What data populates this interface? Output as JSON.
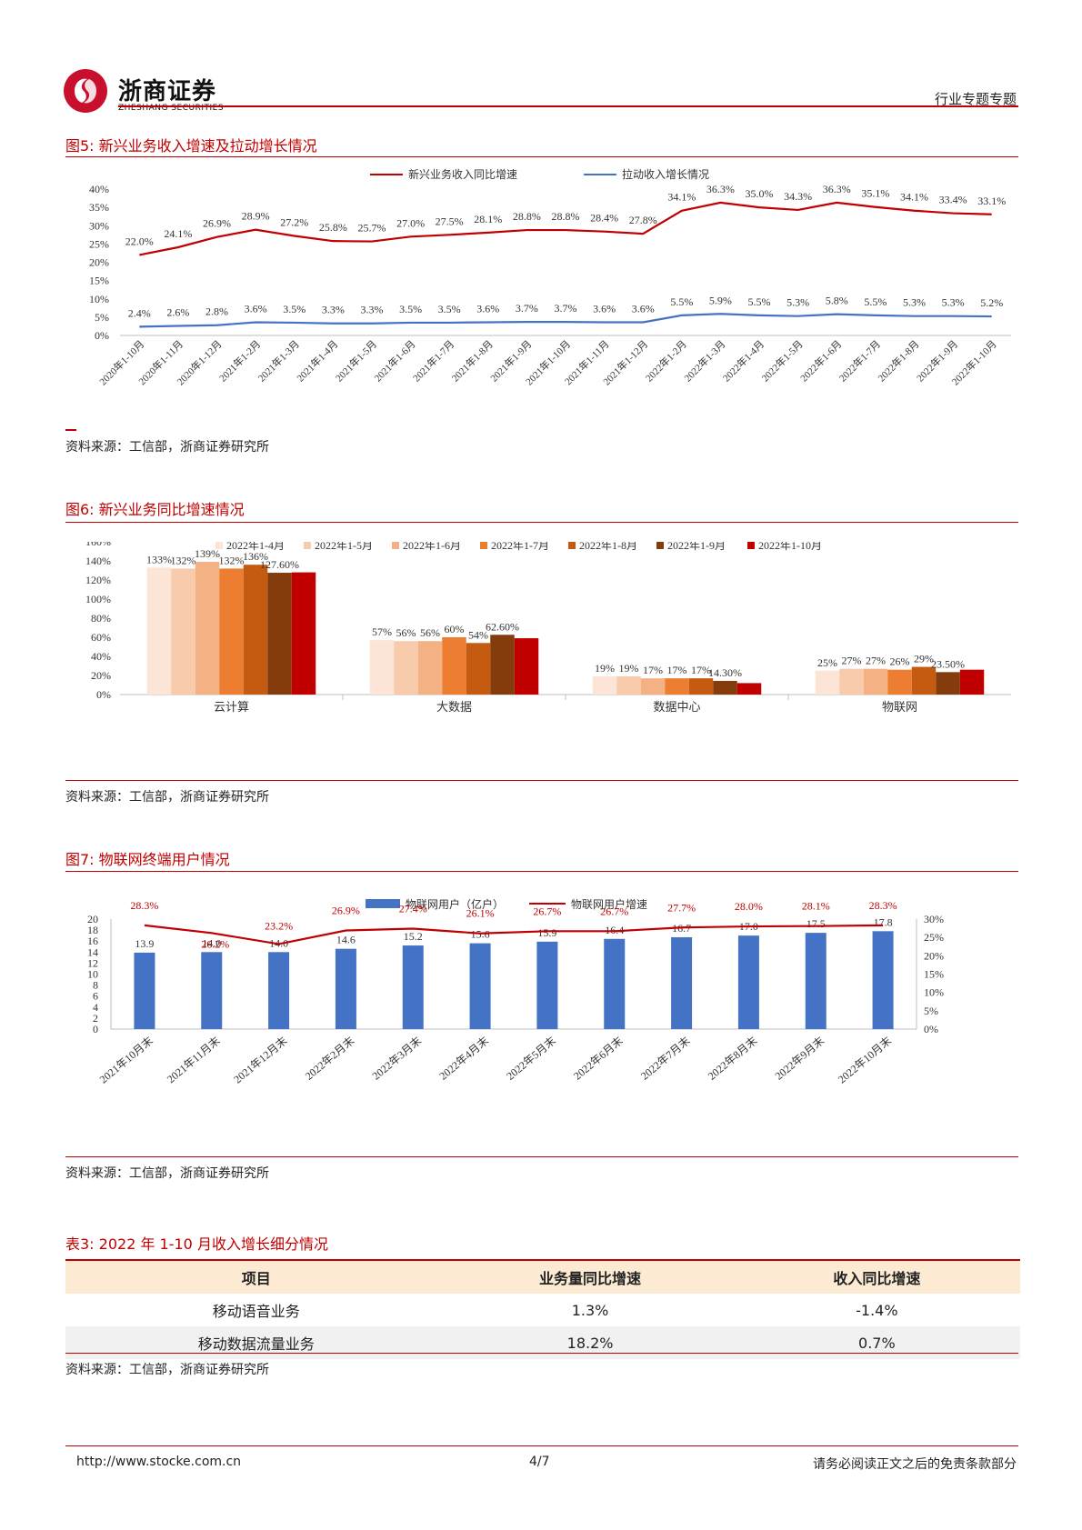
{
  "header": {
    "brand": "浙商证券",
    "brand_en": "ZHESHANG SECURITIES",
    "section": "行业专题专题"
  },
  "fig5": {
    "title": "图5:  新兴业务收入增速及拉动增长情况",
    "source": "资料来源：工信部，浙商证券研究所",
    "chart_data": {
      "type": "line",
      "categories": [
        "2020年1-10月",
        "2020年1-11月",
        "2020年1-12月",
        "2021年1-2月",
        "2021年1-3月",
        "2021年1-4月",
        "2021年1-5月",
        "2021年1-6月",
        "2021年1-7月",
        "2021年1-8月",
        "2021年1-9月",
        "2021年1-10月",
        "2021年1-11月",
        "2021年1-12月",
        "2022年1-2月",
        "2022年1-3月",
        "2022年1-4月",
        "2022年1-5月",
        "2022年1-6月",
        "2022年1-7月",
        "2022年1-8月",
        "2022年1-9月",
        "2022年1-10月"
      ],
      "series": [
        {
          "name": "新兴业务收入同比增速",
          "color": "#c00000",
          "values": [
            22.0,
            24.1,
            26.9,
            28.9,
            27.2,
            25.8,
            25.7,
            27.0,
            27.5,
            28.1,
            28.8,
            28.8,
            28.4,
            27.8,
            34.1,
            36.3,
            35.0,
            34.3,
            36.3,
            35.1,
            34.1,
            33.4,
            33.1
          ],
          "labels": [
            "22.0%",
            "24.1%",
            "26.9%",
            "28.9%",
            "27.2%",
            "25.8%",
            "25.7%",
            "27.0%",
            "27.5%",
            "28.1%",
            "28.8%",
            "28.8%",
            "28.4%",
            "27.8%",
            "34.1%",
            "36.3%",
            "35.0%",
            "34.3%",
            "36.3%",
            "35.1%",
            "34.1%",
            "33.4%",
            "33.1%"
          ]
        },
        {
          "name": "拉动收入增长情况",
          "color": "#4472c4",
          "values": [
            2.4,
            2.6,
            2.8,
            3.6,
            3.5,
            3.3,
            3.3,
            3.5,
            3.5,
            3.6,
            3.7,
            3.7,
            3.6,
            3.6,
            5.5,
            5.9,
            5.5,
            5.3,
            5.8,
            5.5,
            5.3,
            5.3,
            5.2
          ],
          "labels": [
            "2.4%",
            "2.6%",
            "2.8%",
            "3.6%",
            "3.5%",
            "3.3%",
            "3.3%",
            "3.5%",
            "3.5%",
            "3.6%",
            "3.7%",
            "3.7%",
            "3.6%",
            "3.6%",
            "5.5%",
            "5.9%",
            "5.5%",
            "5.3%",
            "5.8%",
            "5.5%",
            "5.3%",
            "5.3%",
            "5.2%"
          ]
        }
      ],
      "yticks": [
        "0%",
        "5%",
        "10%",
        "15%",
        "20%",
        "25%",
        "30%",
        "35%",
        "40%"
      ],
      "ylim": [
        0,
        40
      ],
      "legend": "top"
    }
  },
  "fig6": {
    "title": "图6:  新兴业务同比增速情况",
    "source": "资料来源：工信部，浙商证券研究所",
    "chart_data": {
      "type": "bar",
      "categories": [
        "云计算",
        "大数据",
        "数据中心",
        "物联网"
      ],
      "series": [
        {
          "name": "2022年1-4月",
          "color": "#fce4d6",
          "values": [
            133,
            57,
            19,
            25
          ],
          "labels": [
            "133%",
            "57%",
            "19%",
            "25%"
          ]
        },
        {
          "name": "2022年1-5月",
          "color": "#f8cbad",
          "values": [
            132,
            56,
            19,
            27
          ],
          "labels": [
            "132%",
            "56%",
            "19%",
            "27%"
          ]
        },
        {
          "name": "2022年1-6月",
          "color": "#f4b183",
          "values": [
            139,
            56,
            17,
            27
          ],
          "labels": [
            "139%",
            "56%",
            "17%",
            "27%"
          ]
        },
        {
          "name": "2022年1-7月",
          "color": "#ed7d31",
          "values": [
            132,
            60,
            17,
            26
          ],
          "labels": [
            "132%",
            "60%",
            "17%",
            "26%"
          ]
        },
        {
          "name": "2022年1-8月",
          "color": "#c55a11",
          "values": [
            136,
            54,
            17,
            29
          ],
          "labels": [
            "136%",
            "54%",
            "17%",
            "29%"
          ]
        },
        {
          "name": "2022年1-9月",
          "color": "#843c0c",
          "values": [
            127.6,
            62.6,
            14.3,
            23.5
          ],
          "labels": [
            "127.60%",
            "62.60%",
            "14.30%",
            "23.50%"
          ]
        },
        {
          "name": "2022年1-10月",
          "color": "#c00000",
          "values": [
            128,
            59,
            12,
            26
          ],
          "labels": [
            "",
            "",
            "",
            ""
          ]
        }
      ],
      "yticks": [
        "0%",
        "20%",
        "40%",
        "60%",
        "80%",
        "100%",
        "120%",
        "140%",
        "160%"
      ],
      "ylim": [
        0,
        160
      ],
      "legend": "top"
    }
  },
  "fig7": {
    "title": "图7:  物联网终端用户情况",
    "source": "资料来源：工信部，浙商证券研究所",
    "chart_data": {
      "type": "bar",
      "categories": [
        "2021年10月末",
        "2021年11月末",
        "2021年12月末",
        "2022年2月末",
        "2022年3月末",
        "2022年4月末",
        "2022年5月末",
        "2022年6月末",
        "2022年7月末",
        "2022年8月末",
        "2022年9月末",
        "2022年10月末"
      ],
      "series": [
        {
          "name": "物联网用户（亿户）",
          "type": "bar",
          "color": "#4472c4",
          "values": [
            13.9,
            14.0,
            14.0,
            14.6,
            15.2,
            15.6,
            15.9,
            16.4,
            16.7,
            17.0,
            17.5,
            17.8
          ],
          "labels": [
            "13.9",
            "14.0",
            "14.0",
            "14.6",
            "15.2",
            "15.6",
            "15.9",
            "16.4",
            "16.7",
            "17.0",
            "17.5",
            "17.8"
          ]
        },
        {
          "name": "物联网用户增速",
          "type": "line",
          "color": "#c00000",
          "values": [
            28.3,
            26.2,
            23.2,
            26.9,
            27.4,
            26.1,
            26.7,
            26.7,
            27.7,
            28.0,
            28.1,
            28.3
          ],
          "labels": [
            "28.3%",
            "26.2%",
            "23.2%",
            "26.9%",
            "27.4%",
            "26.1%",
            "26.7%",
            "26.7%",
            "27.7%",
            "28.0%",
            "28.1%",
            "28.3%"
          ]
        }
      ],
      "yticks_left": [
        "0",
        "2",
        "4",
        "6",
        "8",
        "10",
        "12",
        "14",
        "16",
        "18",
        "20"
      ],
      "ylim_left": [
        0,
        20
      ],
      "yticks_right": [
        "0%",
        "5%",
        "10%",
        "15%",
        "20%",
        "25%",
        "30%"
      ],
      "ylim_right": [
        0,
        30
      ],
      "legend": "top"
    }
  },
  "table3": {
    "title": "表3:  2022 年 1-10 月收入增长细分情况",
    "headers": [
      "项目",
      "业务量同比增速",
      "收入同比增速"
    ],
    "rows": [
      [
        "移动语音业务",
        "1.3%",
        "-1.4%"
      ],
      [
        "移动数据流量业务",
        "18.2%",
        "0.7%"
      ]
    ],
    "source": "资料来源：工信部，浙商证券研究所"
  },
  "footer": {
    "url": "http://www.stocke.com.cn",
    "page": "4/7",
    "disclaimer": "请务必阅读正文之后的免责条款部分"
  }
}
